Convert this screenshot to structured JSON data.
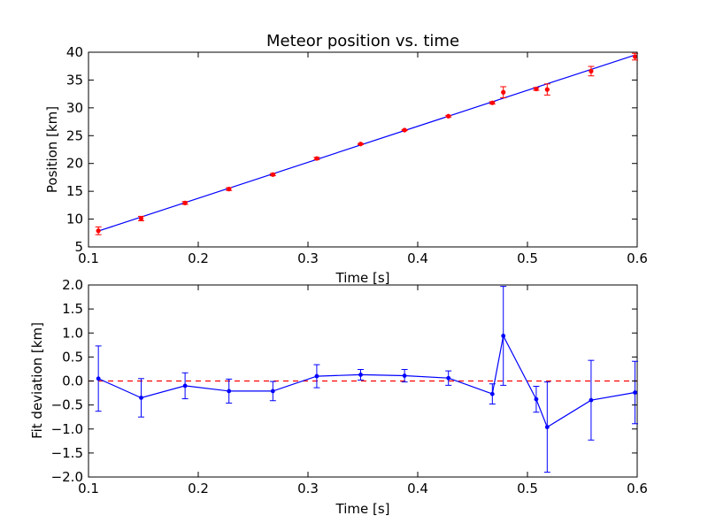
{
  "chart_data": [
    {
      "type": "scatter",
      "title": "Meteor position vs. time",
      "xlabel": "Time [s]",
      "ylabel": "Position [km]",
      "xlim": [
        0.1,
        0.6
      ],
      "ylim": [
        5,
        40
      ],
      "xticks": [
        "0.1",
        "0.2",
        "0.3",
        "0.4",
        "0.5",
        "0.6"
      ],
      "yticks": [
        "5",
        "10",
        "15",
        "20",
        "25",
        "30",
        "35",
        "40"
      ],
      "grid": false,
      "series": [
        {
          "kind": "errorbar-points",
          "color": "#ff0000",
          "x": [
            0.109,
            0.148,
            0.188,
            0.228,
            0.268,
            0.308,
            0.348,
            0.388,
            0.428,
            0.468,
            0.478,
            0.508,
            0.518,
            0.558,
            0.598
          ],
          "y": [
            7.9,
            10.1,
            12.9,
            15.4,
            18.0,
            20.9,
            23.5,
            26.0,
            28.5,
            30.9,
            32.8,
            33.4,
            33.3,
            36.6,
            39.2
          ],
          "yerr": [
            0.7,
            0.4,
            0.25,
            0.25,
            0.2,
            0.2,
            0.1,
            0.1,
            0.15,
            0.2,
            1.0,
            0.25,
            1.0,
            0.85,
            0.6
          ]
        },
        {
          "kind": "fit-line",
          "color": "#0000ff",
          "x": [
            0.109,
            0.598
          ],
          "y": [
            7.85,
            39.5
          ]
        }
      ]
    },
    {
      "type": "line",
      "xlabel": "Time [s]",
      "ylabel": "Fit deviation [km]",
      "xlim": [
        0.1,
        0.6
      ],
      "ylim": [
        -2.0,
        2.0
      ],
      "xticks": [
        "0.1",
        "0.2",
        "0.3",
        "0.4",
        "0.5",
        "0.6"
      ],
      "yticks": [
        "−2.0",
        "−1.5",
        "−1.0",
        "−0.5",
        "0.0",
        "0.5",
        "1.0",
        "1.5",
        "2.0"
      ],
      "grid": false,
      "reference_line": {
        "y": 0.0,
        "color": "#ff0000",
        "style": "dashed"
      },
      "series": [
        {
          "kind": "errorbar-line",
          "color": "#0000ff",
          "x": [
            0.109,
            0.148,
            0.188,
            0.228,
            0.268,
            0.308,
            0.348,
            0.388,
            0.428,
            0.468,
            0.478,
            0.508,
            0.518,
            0.558,
            0.598
          ],
          "y": [
            0.05,
            -0.35,
            -0.1,
            -0.21,
            -0.21,
            0.1,
            0.13,
            0.11,
            0.06,
            -0.27,
            0.94,
            -0.38,
            -0.96,
            -0.4,
            -0.24
          ],
          "yerr": [
            0.68,
            0.4,
            0.27,
            0.25,
            0.2,
            0.24,
            0.11,
            0.13,
            0.15,
            0.21,
            1.03,
            0.27,
            0.94,
            0.83,
            0.65
          ]
        }
      ]
    }
  ]
}
